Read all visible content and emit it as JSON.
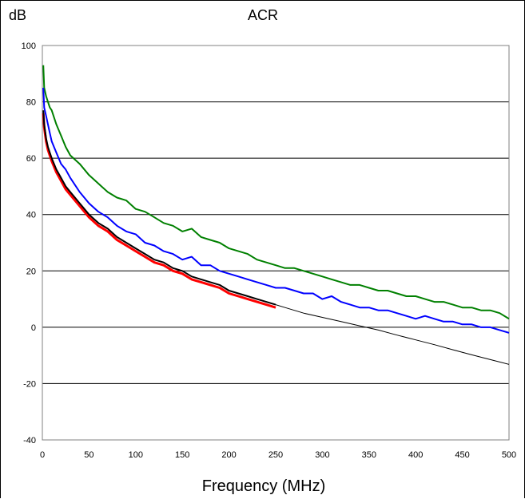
{
  "chart_data": {
    "type": "line",
    "title": "ACR",
    "ylabel": "dB",
    "xlabel": "Frequency (MHz)",
    "xlim": [
      0,
      500
    ],
    "ylim": [
      -40,
      100
    ],
    "x_ticks": [
      0,
      50,
      100,
      150,
      200,
      250,
      300,
      350,
      400,
      450,
      500
    ],
    "y_ticks": [
      -40,
      -20,
      0,
      20,
      40,
      60,
      80,
      100
    ],
    "grid": "horizontal",
    "legend": "none",
    "colors": {
      "plot_area": "#ffffff",
      "gridline": "#000000",
      "axis": "#808080"
    },
    "series": [
      {
        "color": "#008000",
        "line_width": 2,
        "x": [
          1,
          2,
          4,
          6,
          8,
          10,
          15,
          20,
          25,
          30,
          40,
          50,
          60,
          70,
          80,
          90,
          100,
          110,
          120,
          130,
          140,
          150,
          160,
          170,
          180,
          190,
          200,
          210,
          220,
          230,
          240,
          250,
          260,
          270,
          280,
          290,
          300,
          310,
          320,
          330,
          340,
          350,
          360,
          370,
          380,
          390,
          400,
          410,
          420,
          430,
          440,
          450,
          460,
          470,
          480,
          490,
          500
        ],
        "y": [
          93,
          85,
          82,
          80,
          78,
          77,
          72,
          68,
          64,
          61,
          58,
          54,
          51,
          48,
          46,
          45,
          42,
          41,
          39,
          37,
          36,
          34,
          35,
          32,
          31,
          30,
          28,
          27,
          26,
          24,
          23,
          22,
          21,
          21,
          20,
          19,
          18,
          17,
          16,
          15,
          15,
          14,
          13,
          13,
          12,
          11,
          11,
          10,
          9,
          9,
          8,
          7,
          7,
          6,
          6,
          5,
          3
        ]
      },
      {
        "color": "#0000ff",
        "line_width": 2,
        "x": [
          1,
          2,
          4,
          6,
          8,
          10,
          15,
          20,
          25,
          30,
          40,
          50,
          60,
          70,
          80,
          90,
          100,
          110,
          120,
          130,
          140,
          150,
          160,
          170,
          180,
          190,
          200,
          210,
          220,
          230,
          240,
          250,
          260,
          270,
          280,
          290,
          300,
          310,
          320,
          330,
          340,
          350,
          360,
          370,
          380,
          390,
          400,
          410,
          420,
          430,
          440,
          450,
          460,
          470,
          480,
          490,
          500
        ],
        "y": [
          85,
          78,
          75,
          72,
          69,
          66,
          62,
          58,
          56,
          53,
          48,
          44,
          41,
          39,
          36,
          34,
          33,
          30,
          29,
          27,
          26,
          24,
          25,
          22,
          22,
          20,
          19,
          18,
          17,
          16,
          15,
          14,
          14,
          13,
          12,
          12,
          10,
          11,
          9,
          8,
          7,
          7,
          6,
          6,
          5,
          4,
          3,
          4,
          3,
          2,
          2,
          1,
          1,
          0,
          0,
          -1,
          -2
        ]
      },
      {
        "color": "#ff0000",
        "line_width": 3,
        "x": [
          1,
          2,
          4,
          6,
          8,
          10,
          15,
          20,
          25,
          30,
          40,
          50,
          60,
          70,
          80,
          90,
          100,
          110,
          120,
          130,
          140,
          150,
          160,
          170,
          180,
          190,
          200,
          210,
          220,
          230,
          240,
          250
        ],
        "y": [
          76,
          71,
          66,
          63,
          61,
          59,
          55,
          52,
          49,
          47,
          43,
          39,
          36,
          34,
          31,
          29,
          27,
          25,
          23,
          22,
          20,
          19,
          17,
          16,
          15,
          14,
          12,
          11,
          10,
          9,
          8,
          7
        ]
      },
      {
        "color": "#000000",
        "line_width": 2,
        "x": [
          1,
          2,
          4,
          6,
          8,
          10,
          15,
          20,
          25,
          30,
          40,
          50,
          60,
          70,
          80,
          90,
          100,
          110,
          120,
          130,
          140,
          150,
          160,
          170,
          180,
          190,
          200,
          210,
          220,
          230,
          240,
          250
        ],
        "y": [
          77,
          72,
          67,
          64,
          62,
          60,
          56,
          53,
          50,
          48,
          44,
          40,
          37,
          35,
          32,
          30,
          28,
          26,
          24,
          23,
          21,
          20,
          18,
          17,
          16,
          15,
          13,
          12,
          11,
          10,
          9,
          8
        ]
      },
      {
        "color": "#000000",
        "line_width": 1,
        "x": [
          250,
          260,
          280,
          300,
          320,
          340,
          360,
          380,
          400,
          420,
          440,
          460,
          480,
          500
        ],
        "y": [
          8,
          7,
          5,
          3.5,
          2,
          0.5,
          -1,
          -2.8,
          -4.5,
          -6.2,
          -8,
          -9.8,
          -11.5,
          -13.2
        ]
      }
    ]
  }
}
